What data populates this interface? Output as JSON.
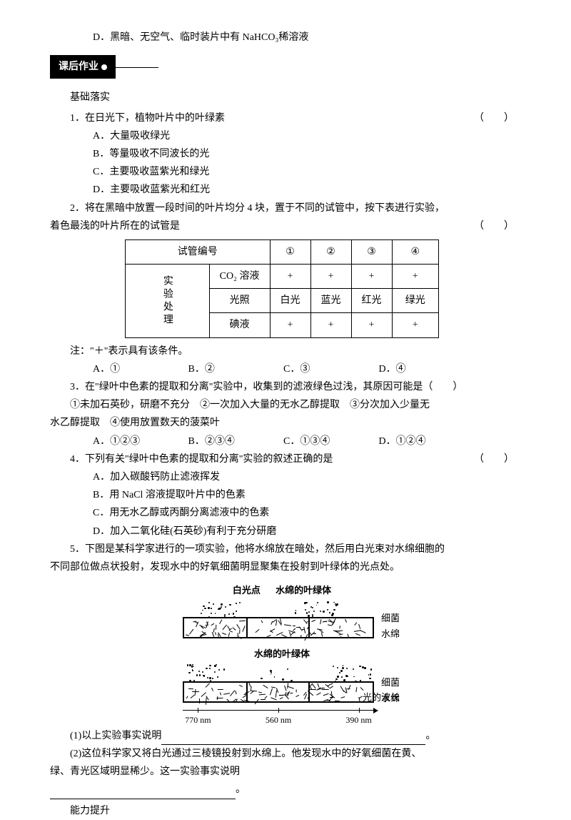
{
  "optD_top": "D．黑暗、无空气、临时装片中有 NaHCO₃稀溶液",
  "banner": "课后作业",
  "subhead": "基础落实",
  "q1": {
    "stem": "1．在日光下，植物叶片中的叶绿素",
    "paren": "（　　）",
    "A": "A．大量吸收绿光",
    "B": "B．等量吸收不同波长的光",
    "C": "C．主要吸收蓝紫光和绿光",
    "D": "D．主要吸收蓝紫光和红光"
  },
  "q2": {
    "stem1": "2．将在黑暗中放置一段时间的叶片均分 4 块，置于不同的试管中，按下表进行实验，",
    "stem2": "着色最浅的叶片所在的试管是",
    "paren": "（　　）",
    "table": {
      "h0": "试管编号",
      "h1": "①",
      "h2": "②",
      "h3": "③",
      "h4": "④",
      "side": "实验处理",
      "r1_0": "CO₂ 溶液",
      "r1_1": "+",
      "r1_2": "+",
      "r1_3": "+",
      "r1_4": "+",
      "r2_0": "光照",
      "r2_1": "白光",
      "r2_2": "蓝光",
      "r2_3": "红光",
      "r2_4": "绿光",
      "r3_0": "碘液",
      "r3_1": "+",
      "r3_2": "+",
      "r3_3": "+",
      "r3_4": "+"
    },
    "note": "注：\"＋\"表示具有该条件。",
    "opts": {
      "A": "A．①",
      "B": "B．②",
      "C": "C．③",
      "D": "D．④"
    }
  },
  "q3": {
    "stem": "3．在\"绿叶中色素的提取和分离\"实验中，收集到的滤液绿色过浅，其原因可能是（　　）",
    "line2": "①未加石英砂，研磨不充分　②一次加入大量的无水乙醇提取　③分次加入少量无",
    "line3": "水乙醇提取　④使用放置数天的菠菜叶",
    "opts": {
      "A": "A．①②③",
      "B": "B．②③④",
      "C": "C．①③④",
      "D": "D．①②④"
    }
  },
  "q4": {
    "stem": "4．下列有关\"绿叶中色素的提取和分离\"实验的叙述正确的是",
    "paren": "（　　）",
    "A": "A．加入碳酸钙防止滤液挥发",
    "B": "B．用 NaCl 溶液提取叶片中的色素",
    "C": "C．用无水乙醇或丙酮分离滤液中的色素",
    "D": "D．加入二氧化硅(石英砂)有利于充分研磨"
  },
  "q5": {
    "stem1": "5．下图是某科学家进行的一项实验，他将水绵放在暗处，然后用白光束对水绵细胞的",
    "stem2": "不同部位做点状投射，发现水中的好氧细菌明显聚集在投射到叶绿体的光点处。",
    "diagram": {
      "top1": "白光点",
      "top2": "水绵的叶绿体",
      "mid": "水绵的叶绿体",
      "r1": "细菌",
      "r2": "水绵",
      "r3": "细菌",
      "r4": "水绵",
      "axis": {
        "t1": "770 nm",
        "t2": "560 nm",
        "t3": "390 nm",
        "label": "光的波长"
      }
    },
    "sub1_pre": "(1)以上实验事实说明",
    "sub1_post": "。",
    "sub2a": "(2)这位科学家又将白光通过三棱镜投射到水绵上。他发现水中的好氧细菌在黄、",
    "sub2b": "绿、青光区域明显稀少。这一实验事实说明",
    "sub2c": "。"
  },
  "foot": "能力提升",
  "style": {
    "blank1_width": 370,
    "blank2_width": 260,
    "colors": {
      "text": "#000000",
      "bg": "#ffffff"
    }
  }
}
